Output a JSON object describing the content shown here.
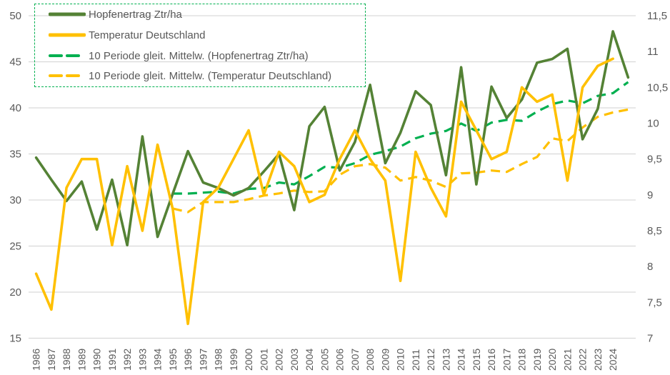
{
  "chart_data": {
    "type": "line",
    "title": "",
    "xlabel": "",
    "ylabel": "",
    "y2label": "",
    "grid": true,
    "legend_position": "top-left",
    "categories": [
      "1986",
      "1987",
      "1988",
      "1989",
      "1990",
      "1991",
      "1992",
      "1993",
      "1994",
      "1995",
      "1996",
      "1997",
      "1998",
      "1999",
      "2000",
      "2001",
      "2002",
      "2003",
      "2004",
      "2005",
      "2006",
      "2007",
      "2008",
      "2009",
      "2010",
      "2011",
      "2012",
      "2013",
      "2014",
      "2015",
      "2016",
      "2017",
      "2018",
      "2019",
      "2020",
      "2021",
      "2022",
      "2023",
      "2024",
      ""
    ],
    "ylim": [
      15,
      50
    ],
    "y_ticks": [
      "15",
      "20",
      "25",
      "30",
      "35",
      "40",
      "45",
      "50"
    ],
    "y2lim": [
      7,
      11.5
    ],
    "y2_ticks": [
      "7",
      "7,5",
      "8",
      "8,5",
      "9",
      "9,5",
      "10",
      "10,5",
      "11",
      "11,5"
    ],
    "series": [
      {
        "name": "Hopfenertrag Ztr/ha",
        "axis": "left",
        "style": "solid",
        "color": "#548235",
        "values": [
          34.6,
          32.2,
          29.9,
          32.0,
          26.8,
          32.2,
          25.1,
          36.9,
          26.0,
          30.7,
          35.3,
          31.9,
          31.3,
          30.5,
          31.3,
          33.1,
          35.0,
          28.9,
          38.0,
          40.1,
          33.2,
          36.3,
          42.5,
          34.0,
          37.3,
          41.8,
          40.3,
          32.7,
          44.4,
          31.7,
          42.3,
          38.9,
          40.9,
          44.9,
          45.3,
          46.4,
          36.6,
          39.9,
          48.3,
          43.3
        ]
      },
      {
        "name": "Temperatur Deutschland",
        "axis": "right",
        "style": "solid",
        "color": "#FFC000",
        "values": [
          7.9,
          7.4,
          9.1,
          9.5,
          9.5,
          8.3,
          9.4,
          8.5,
          9.7,
          8.8,
          7.2,
          8.9,
          9.1,
          9.5,
          9.9,
          9.0,
          9.6,
          9.4,
          8.9,
          9.0,
          9.5,
          9.9,
          9.5,
          9.2,
          7.8,
          9.6,
          9.1,
          8.7,
          10.3,
          9.9,
          9.5,
          9.6,
          10.5,
          10.3,
          10.4,
          9.2,
          10.5,
          10.8,
          10.9,
          null
        ]
      },
      {
        "name": "10 Periode gleit. Mittelw. (Hopfenertrag Ztr/ha)",
        "axis": "left",
        "style": "dashed",
        "color": "#00B050",
        "values": [
          null,
          null,
          null,
          null,
          null,
          null,
          null,
          null,
          null,
          30.7,
          30.7,
          30.8,
          30.9,
          30.7,
          31.2,
          31.3,
          31.9,
          31.7,
          32.6,
          33.6,
          33.5,
          34.0,
          34.9,
          35.3,
          35.8,
          36.7,
          37.2,
          37.5,
          38.3,
          37.5,
          38.4,
          38.7,
          38.6,
          39.6,
          40.4,
          40.8,
          40.5,
          41.3,
          41.6,
          42.8
        ]
      },
      {
        "name": "10 Periode gleit. Mittelw. (Temperatur Deutschland)",
        "axis": "right",
        "style": "dashed",
        "color": "#FFC000",
        "values": [
          null,
          null,
          null,
          null,
          null,
          null,
          null,
          null,
          null,
          8.81,
          8.76,
          8.9,
          8.9,
          8.9,
          8.94,
          8.99,
          9.02,
          9.06,
          9.04,
          9.05,
          9.28,
          9.4,
          9.43,
          9.38,
          9.2,
          9.25,
          9.2,
          9.11,
          9.3,
          9.31,
          9.34,
          9.32,
          9.43,
          9.53,
          9.79,
          9.75,
          9.94,
          10.09,
          10.15,
          10.19
        ]
      }
    ]
  },
  "colors": {
    "gridline": "#D9D9D9",
    "tick_text": "#595959",
    "legend_border": "#00B050"
  }
}
